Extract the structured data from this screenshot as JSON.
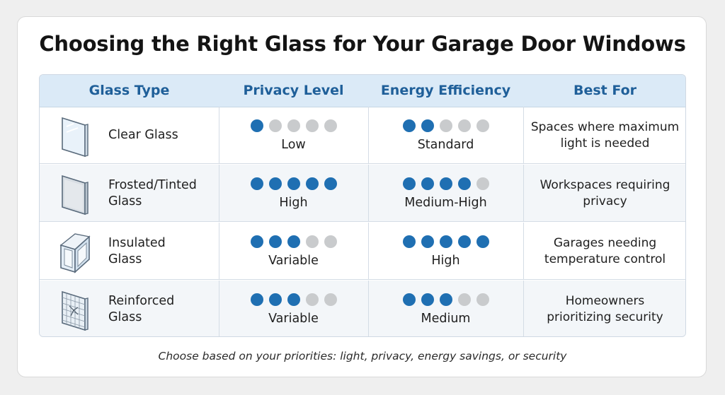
{
  "title": "Choosing the Right Glass for Your Garage Door Windows",
  "headers": [
    "Glass Type",
    "Privacy Level",
    "Energy Efficiency",
    "Best For"
  ],
  "rows": [
    {
      "type_line1": "Clear Glass",
      "type_line2": "",
      "icon": "clear-glass-icon",
      "privacy_level": 1,
      "privacy_label": "Low",
      "energy_level": 2,
      "energy_label": "Standard",
      "best_for_line1": "Spaces where maximum",
      "best_for_line2": "light is needed"
    },
    {
      "type_line1": "Frosted/Tinted",
      "type_line2": "Glass",
      "icon": "frosted-glass-icon",
      "privacy_level": 5,
      "privacy_label": "High",
      "energy_level": 4,
      "energy_label": "Medium-High",
      "best_for_line1": "Workspaces requiring",
      "best_for_line2": "privacy"
    },
    {
      "type_line1": "Insulated",
      "type_line2": "Glass",
      "icon": "insulated-glass-icon",
      "privacy_level": 3,
      "privacy_label": "Variable",
      "energy_level": 5,
      "energy_label": "High",
      "best_for_line1": "Garages needing",
      "best_for_line2": "temperature control"
    },
    {
      "type_line1": "Reinforced",
      "type_line2": "Glass",
      "icon": "reinforced-glass-icon",
      "privacy_level": 3,
      "privacy_label": "Variable",
      "energy_level": 3,
      "energy_label": "Medium",
      "best_for_line1": "Homeowners",
      "best_for_line2": "prioritizing security"
    }
  ],
  "rating_max": 5,
  "colors": {
    "accent": "#1f6fb2",
    "header_bg": "#dbeaf7",
    "header_text": "#1f5f99",
    "dot_off": "#c9cbcd"
  },
  "footer": "Choose based on your priorities: light, privacy, energy savings, or security"
}
